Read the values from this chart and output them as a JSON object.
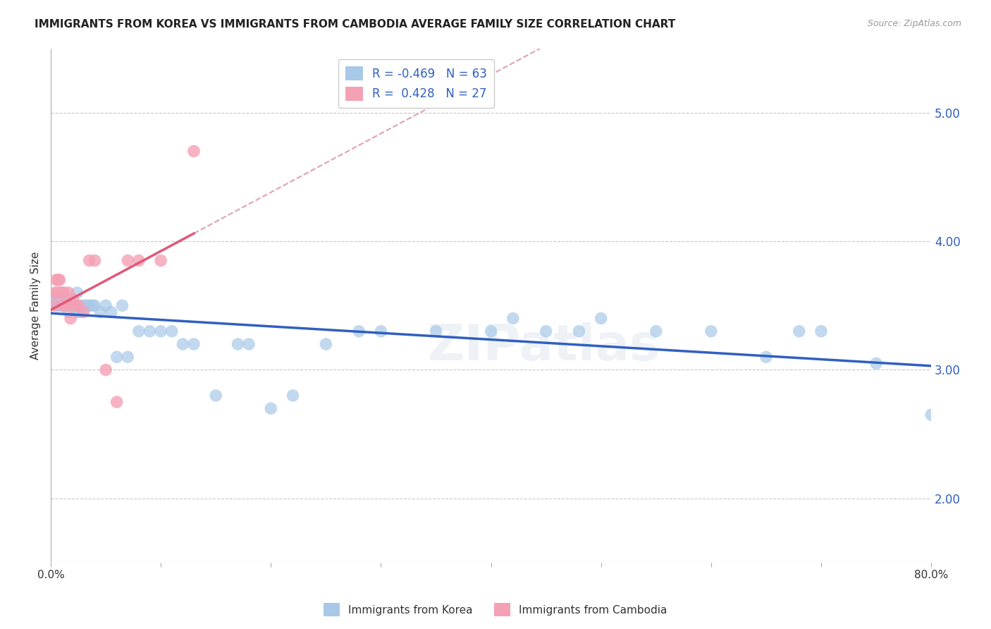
{
  "title": "IMMIGRANTS FROM KOREA VS IMMIGRANTS FROM CAMBODIA AVERAGE FAMILY SIZE CORRELATION CHART",
  "source": "Source: ZipAtlas.com",
  "ylabel": "Average Family Size",
  "right_yticks": [
    2.0,
    3.0,
    4.0,
    5.0
  ],
  "korea_R": -0.469,
  "korea_N": 63,
  "cambodia_R": 0.428,
  "cambodia_N": 27,
  "korea_color": "#a8c8e8",
  "cambodia_color": "#f4a0b5",
  "korea_line_color": "#3060c0",
  "cambodia_line_color": "#e05878",
  "trend_dash_color": "#e0a0b8",
  "watermark": "ZIPatlas",
  "korea_x": [
    0.3,
    0.4,
    0.5,
    0.6,
    0.7,
    0.8,
    0.9,
    1.0,
    1.1,
    1.2,
    1.3,
    1.4,
    1.5,
    1.6,
    1.7,
    1.8,
    1.9,
    2.0,
    2.1,
    2.2,
    2.3,
    2.4,
    2.5,
    2.6,
    2.8,
    3.0,
    3.2,
    3.5,
    3.8,
    4.0,
    4.5,
    5.0,
    5.5,
    6.0,
    6.5,
    7.0,
    8.0,
    9.0,
    10.0,
    11.0,
    12.0,
    13.0,
    15.0,
    17.0,
    18.0,
    20.0,
    22.0,
    25.0,
    28.0,
    30.0,
    35.0,
    40.0,
    42.0,
    45.0,
    48.0,
    50.0,
    55.0,
    60.0,
    65.0,
    68.0,
    70.0,
    75.0,
    80.0
  ],
  "korea_y": [
    3.55,
    3.55,
    3.5,
    3.5,
    3.5,
    3.55,
    3.5,
    3.5,
    3.5,
    3.55,
    3.5,
    3.5,
    3.5,
    3.45,
    3.5,
    3.5,
    3.5,
    3.5,
    3.5,
    3.5,
    3.45,
    3.6,
    3.45,
    3.5,
    3.45,
    3.5,
    3.5,
    3.5,
    3.5,
    3.5,
    3.45,
    3.5,
    3.45,
    3.1,
    3.5,
    3.1,
    3.3,
    3.3,
    3.3,
    3.3,
    3.2,
    3.2,
    2.8,
    3.2,
    3.2,
    2.7,
    2.8,
    3.2,
    3.3,
    3.3,
    3.3,
    3.3,
    3.4,
    3.3,
    3.3,
    3.4,
    3.3,
    3.3,
    3.1,
    3.3,
    3.3,
    3.05,
    2.65
  ],
  "cambodia_x": [
    0.3,
    0.4,
    0.5,
    0.6,
    0.7,
    0.8,
    0.9,
    1.0,
    1.1,
    1.2,
    1.3,
    1.4,
    1.5,
    1.6,
    1.8,
    2.0,
    2.2,
    2.5,
    3.0,
    3.5,
    4.0,
    5.0,
    6.0,
    7.0,
    8.0,
    10.0,
    13.0
  ],
  "cambodia_y": [
    3.5,
    3.6,
    3.7,
    3.6,
    3.7,
    3.7,
    3.6,
    3.6,
    3.5,
    3.6,
    3.5,
    3.5,
    3.5,
    3.6,
    3.4,
    3.55,
    3.5,
    3.5,
    3.45,
    3.85,
    3.85,
    3.0,
    2.75,
    3.85,
    3.85,
    3.85,
    4.7
  ],
  "xlim": [
    0,
    80
  ],
  "ylim": [
    1.5,
    5.5
  ],
  "background_color": "#ffffff",
  "grid_color": "#c8c8c8"
}
